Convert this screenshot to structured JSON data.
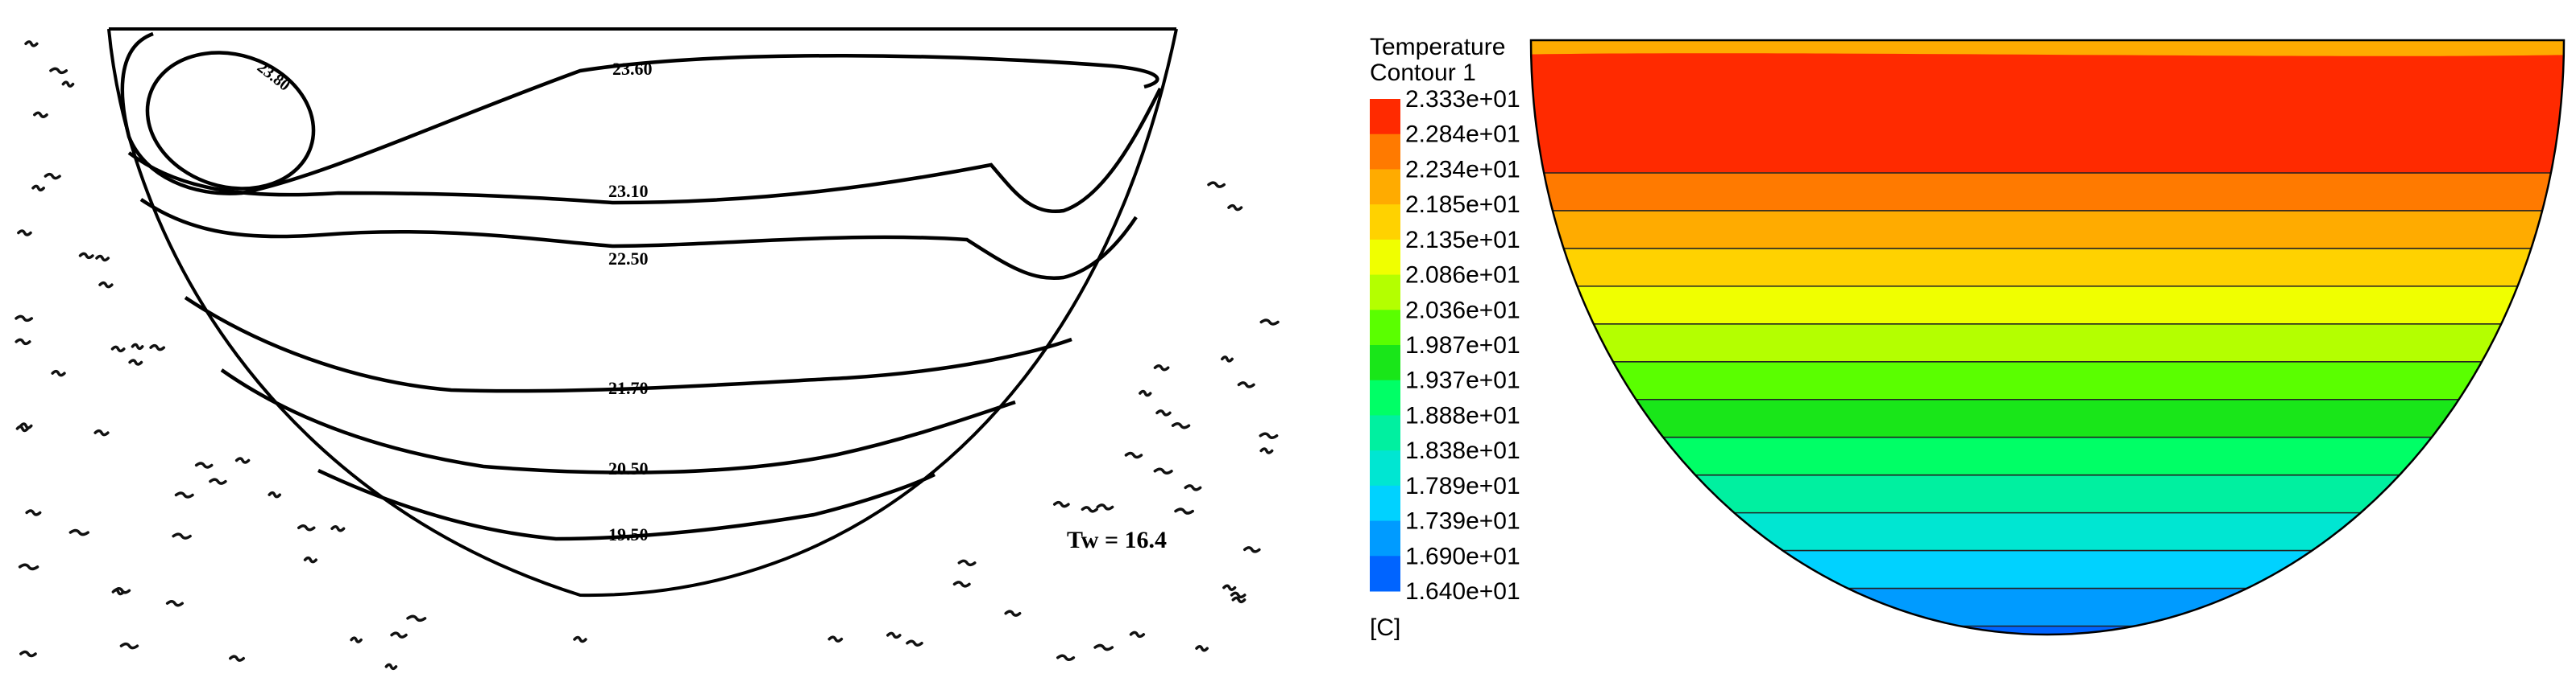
{
  "left_panel": {
    "contours": [
      {
        "label": "23.80"
      },
      {
        "label": "23.60"
      },
      {
        "label": "23.10"
      },
      {
        "label": "22.50"
      },
      {
        "label": "21.70"
      },
      {
        "label": "20.50"
      },
      {
        "label": "19.50"
      }
    ],
    "wall_label": "Tw = 16.4"
  },
  "chart_data": {
    "type": "heatmap",
    "title": "Temperature",
    "subtitle": "Contour 1",
    "unit": "[C]",
    "levels": [
      {
        "value": 23.33,
        "label": "2.333e+01",
        "color": "#ff2a00"
      },
      {
        "value": 22.84,
        "label": "2.284e+01",
        "color": "#ff7a00"
      },
      {
        "value": 22.34,
        "label": "2.234e+01",
        "color": "#ffab00"
      },
      {
        "value": 21.85,
        "label": "2.185e+01",
        "color": "#ffd200"
      },
      {
        "value": 21.35,
        "label": "2.135e+01",
        "color": "#f0ff00"
      },
      {
        "value": 20.86,
        "label": "2.086e+01",
        "color": "#b4ff00"
      },
      {
        "value": 20.36,
        "label": "2.036e+01",
        "color": "#5aff00"
      },
      {
        "value": 19.87,
        "label": "1.987e+01",
        "color": "#19e619"
      },
      {
        "value": 19.37,
        "label": "1.937e+01",
        "color": "#00ff66"
      },
      {
        "value": 18.88,
        "label": "1.888e+01",
        "color": "#00f0a0"
      },
      {
        "value": 18.38,
        "label": "1.838e+01",
        "color": "#00e6d2"
      },
      {
        "value": 17.89,
        "label": "1.789e+01",
        "color": "#00d2ff"
      },
      {
        "value": 17.39,
        "label": "1.739e+01",
        "color": "#009bff"
      },
      {
        "value": 16.9,
        "label": "1.690e+01",
        "color": "#0064ff"
      },
      {
        "value": 16.4,
        "label": "1.640e+01",
        "color": "#1a2dff"
      }
    ]
  }
}
